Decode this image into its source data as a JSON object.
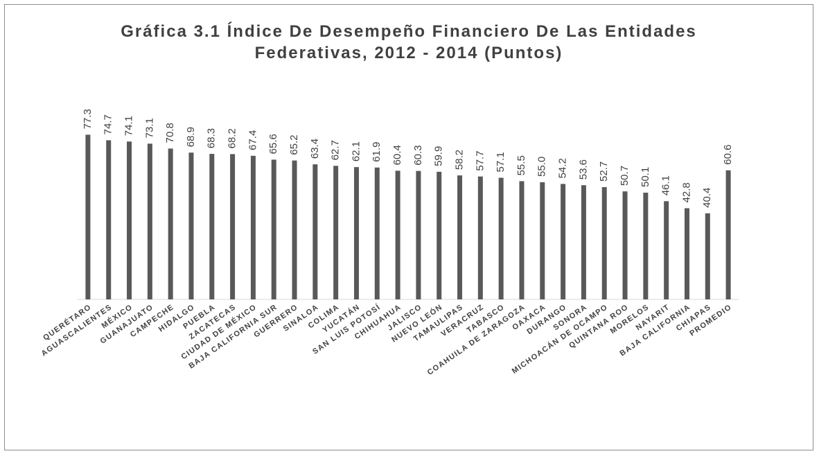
{
  "chart_data": {
    "type": "bar",
    "title": "Gráfica 3.1 Índice De Desempeño Financiero De Las Entidades Federativas, 2012 - 2014 (Puntos)",
    "categories": [
      "QUERÉTARO",
      "AGUASCALIENTES",
      "MÉXICO",
      "GUANAJUATO",
      "CAMPECHE",
      "HIDALGO",
      "PUEBLA",
      "ZACATECAS",
      "CIUDAD DE MÉXICO",
      "BAJA CALIFORNIA SUR",
      "GUERRERO",
      "SINALOA",
      "COLIMA",
      "YUCATÁN",
      "SAN LUIS POTOSÍ",
      "CHIHUAHUA",
      "JALISCO",
      "NUEVO LEÓN",
      "TAMAULIPAS",
      "VERACRUZ",
      "TABASCO",
      "COAHUILA DE ZARAGOZA",
      "OAXACA",
      "DURANGO",
      "SONORA",
      "MICHOACÁN DE OCAMPO",
      "QUINTANA ROO",
      "MORELOS",
      "NAYARIT",
      "BAJA CALIFORNIA",
      "CHIAPAS",
      "PROMEDIO"
    ],
    "values": [
      77.3,
      74.7,
      74.1,
      73.1,
      70.8,
      68.9,
      68.3,
      68.2,
      67.4,
      65.6,
      65.2,
      63.4,
      62.7,
      62.1,
      61.9,
      60.4,
      60.3,
      59.9,
      58.2,
      57.7,
      57.1,
      55.5,
      55.0,
      54.2,
      53.6,
      52.7,
      50.7,
      50.1,
      46.1,
      42.8,
      40.4,
      60.6
    ],
    "value_labels": [
      "77.3",
      "74.7",
      "74.1",
      "73.1",
      "70.8",
      "68.9",
      "68.3",
      "68.2",
      "67.4",
      "65.6",
      "65.2",
      "63.4",
      "62.7",
      "62.1",
      "61.9",
      "60.4",
      "60.3",
      "59.9",
      "58.2",
      "57.7",
      "57.1",
      "55.5",
      "55.0",
      "54.2",
      "53.6",
      "52.7",
      "50.7",
      "50.1",
      "46.1",
      "42.8",
      "40.4",
      "60.6"
    ],
    "color": "#595959",
    "ylim": [
      0,
      95
    ]
  }
}
